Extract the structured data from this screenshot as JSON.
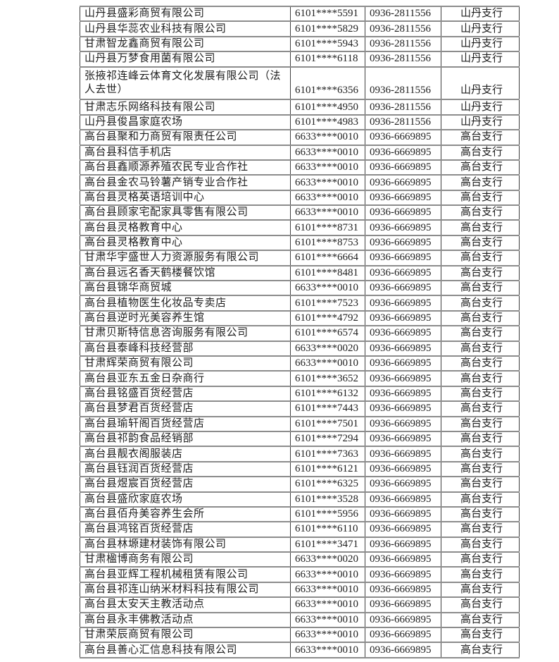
{
  "table": {
    "rows": [
      {
        "name": "山丹县盛彩商贸有限公司",
        "account": "6101****5591",
        "phone": "0936-2811556",
        "branch": "山丹支行"
      },
      {
        "name": "山丹县华蕊农业科技有限公司",
        "account": "6101****5829",
        "phone": "0936-2811556",
        "branch": "山丹支行"
      },
      {
        "name": "甘肃智龙鑫商贸有限公司",
        "account": "6101****5943",
        "phone": "0936-2811556",
        "branch": "山丹支行"
      },
      {
        "name": "山丹县万梦食用菌有限公司",
        "account": "6101****6118",
        "phone": "0936-2811556",
        "branch": "山丹支行"
      },
      {
        "name": "张掖祁连峰云体育文化发展有限公司（法人去世）",
        "account": "6101****6356",
        "phone": "0936-2811556",
        "branch": "山丹支行",
        "tall": true
      },
      {
        "name": "甘肃志乐网络科技有限公司",
        "account": "6101****4950",
        "phone": "0936-2811556",
        "branch": "山丹支行"
      },
      {
        "name": "山丹县俊昌家庭农场",
        "account": "6101****4983",
        "phone": "0936-2811556",
        "branch": "山丹支行"
      },
      {
        "name": "高台县聚和力商贸有限责任公司",
        "account": "6633****0010",
        "phone": "0936-6669895",
        "branch": "高台支行"
      },
      {
        "name": "高台县科信手机店",
        "account": "6633****0010",
        "phone": "0936-6669895",
        "branch": "高台支行"
      },
      {
        "name": "高台县鑫顺源养殖农民专业合作社",
        "account": "6633****0010",
        "phone": "0936-6669895",
        "branch": "高台支行"
      },
      {
        "name": "高台县金农马铃薯产销专业合作社",
        "account": "6633****0010",
        "phone": "0936-6669895",
        "branch": "高台支行"
      },
      {
        "name": "高台县灵格英语培训中心",
        "account": "6633****0010",
        "phone": "0936-6669895",
        "branch": "高台支行"
      },
      {
        "name": "高台县顾家宅配家具零售有限公司",
        "account": "6633****0010",
        "phone": "0936-6669895",
        "branch": "高台支行"
      },
      {
        "name": "高台县灵格教育中心",
        "account": "6101****8731",
        "phone": "0936-6669895",
        "branch": "高台支行"
      },
      {
        "name": "高台县灵格教育中心",
        "account": "6101****8753",
        "phone": "0936-6669895",
        "branch": "高台支行"
      },
      {
        "name": "甘肃华宇盛世人力资源服务有限公司",
        "account": "6101****6664",
        "phone": "0936-6669895",
        "branch": "高台支行"
      },
      {
        "name": "高台县远名香天鹤楼餐饮馆",
        "account": "6101****8481",
        "phone": "0936-6669895",
        "branch": "高台支行"
      },
      {
        "name": "高台县锦华商贸城",
        "account": "6633****0010",
        "phone": "0936-6669895",
        "branch": "高台支行"
      },
      {
        "name": "高台县植物医生化妆品专卖店",
        "account": "6101****7523",
        "phone": "0936-6669895",
        "branch": "高台支行"
      },
      {
        "name": "高台县逆时光美容养生馆",
        "account": "6101****4792",
        "phone": "0936-6669895",
        "branch": "高台支行"
      },
      {
        "name": "甘肃贝斯特信息咨询服务有限公司",
        "account": "6101****6574",
        "phone": "0936-6669895",
        "branch": "高台支行"
      },
      {
        "name": "高台县泰峰科技经营部",
        "account": "6633****0020",
        "phone": "0936-6669895",
        "branch": "高台支行"
      },
      {
        "name": "甘肃辉荣商贸有限公司",
        "account": "6633****0010",
        "phone": "0936-6669895",
        "branch": "高台支行"
      },
      {
        "name": "高台县亚东五金日杂商行",
        "account": "6101****3652",
        "phone": "0936-6669895",
        "branch": "高台支行"
      },
      {
        "name": "高台县铭盛百货经营店",
        "account": "6101****6132",
        "phone": "0936-6669895",
        "branch": "高台支行"
      },
      {
        "name": "高台县梦君百货经营店",
        "account": "6101****7443",
        "phone": "0936-6669895",
        "branch": "高台支行"
      },
      {
        "name": "高台县瑜轩阁百货经营店",
        "account": "6101****7501",
        "phone": "0936-6669895",
        "branch": "高台支行"
      },
      {
        "name": "高台县祁韵食品经销部",
        "account": "6101****7294",
        "phone": "0936-6669895",
        "branch": "高台支行"
      },
      {
        "name": "高台县靓衣阁服装店",
        "account": "6101****7363",
        "phone": "0936-6669895",
        "branch": "高台支行"
      },
      {
        "name": "高台县钰润百货经营店",
        "account": "6101****6121",
        "phone": "0936-6669895",
        "branch": "高台支行"
      },
      {
        "name": "高台县煜宸百货经营店",
        "account": "6101****6325",
        "phone": "0936-6669895",
        "branch": "高台支行"
      },
      {
        "name": "高台县盛欣家庭农场",
        "account": "6101****3528",
        "phone": "0936-6669895",
        "branch": "高台支行"
      },
      {
        "name": "高台县佰舟美容养生会所",
        "account": "6101****5956",
        "phone": "0936-6669895",
        "branch": "高台支行"
      },
      {
        "name": "高台县鸿铭百货经营店",
        "account": "6101****6110",
        "phone": "0936-6669895",
        "branch": "高台支行"
      },
      {
        "name": "高台县林塬建材装饰有限公司",
        "account": "6101****3471",
        "phone": "0936-6669895",
        "branch": "高台支行"
      },
      {
        "name": "甘肃楹博商务有限公司",
        "account": "6633****0020",
        "phone": "0936-6669895",
        "branch": "高台支行"
      },
      {
        "name": "高台县亚辉工程机械租赁有限公司",
        "account": "6633****0010",
        "phone": "0936-6669895",
        "branch": "高台支行"
      },
      {
        "name": "高台县祁连山纳米材料科技有限公司",
        "account": "6633****0010",
        "phone": "0936-6669895",
        "branch": "高台支行"
      },
      {
        "name": "高台县太安天主教活动点",
        "account": "6633****0010",
        "phone": "0936-6669895",
        "branch": "高台支行"
      },
      {
        "name": "高台县永丰佛教活动点",
        "account": "6633****0010",
        "phone": "0936-6669895",
        "branch": "高台支行"
      },
      {
        "name": "甘肃荣辰商贸有限公司",
        "account": "6633****0010",
        "phone": "0936-6669895",
        "branch": "高台支行"
      },
      {
        "name": "高台县善心汇信息科技有限公司",
        "account": "6633****0010",
        "phone": "0936-6669895",
        "branch": "高台支行"
      }
    ]
  }
}
